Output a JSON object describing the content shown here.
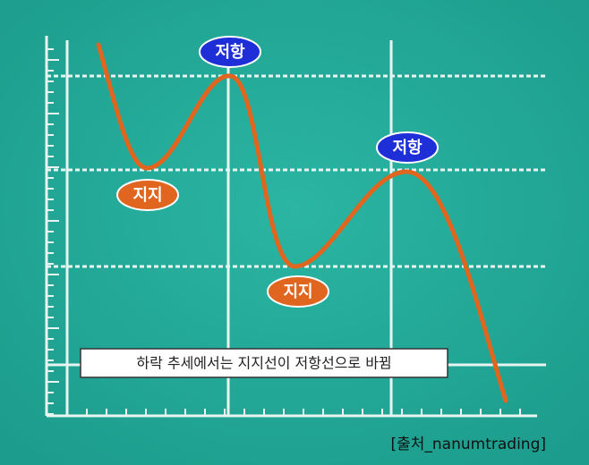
{
  "labels": [
    {
      "text": "저항",
      "kind": "resistance"
    },
    {
      "text": "지지",
      "kind": "support"
    },
    {
      "text": "지지",
      "kind": "support"
    },
    {
      "text": "저항",
      "kind": "resistance"
    }
  ],
  "caption": "하락 추세에서는 지지선이 저항선으로 바뀜",
  "source": "[출처_nanumtrading]"
}
